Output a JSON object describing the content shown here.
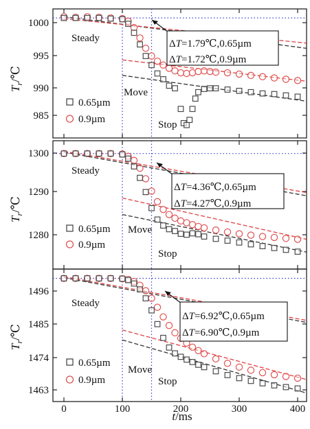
{
  "figure": {
    "x_axis_label_italic": "t",
    "x_axis_label_unit": "/ms",
    "x_ticks": [
      "0",
      "100",
      "200",
      "300",
      "400"
    ],
    "y_axis_label_italic": "T",
    "y_axis_label_sub": "r",
    "y_axis_label_unit": "/℃",
    "legend_labels": [
      "0.65µm",
      "0.9µm"
    ],
    "steady_label": "Steady",
    "move_label": "Move",
    "stop_label": "Stop",
    "delta_prefix": "Δ",
    "delta_var": "T"
  },
  "colors": {
    "series_065": "#4a4a4a",
    "series_09": "#e05050",
    "guide_vertical": "#3a3acc",
    "trend_black": "#333333",
    "trend_red": "#e04040",
    "frame": "#222222"
  },
  "chart_data": [
    {
      "type": "scatter",
      "y_ticks": [
        "1000",
        "995",
        "990",
        "985"
      ],
      "ylim": [
        981.5,
        1001.5
      ],
      "xlim": [
        -15,
        415
      ],
      "annotation_lines": [
        "=1.79℃,0.65µm",
        "=1.72℃,0.9µm"
      ],
      "series": [
        {
          "name": "0.65µm",
          "marker": "square",
          "x": [
            0,
            20,
            40,
            60,
            80,
            100,
            110,
            120,
            130,
            140,
            150,
            160,
            170,
            180,
            190,
            200,
            205,
            210,
            215,
            220,
            225,
            230,
            240,
            250,
            260,
            280,
            300,
            320,
            340,
            360,
            380,
            400
          ],
          "y": [
            1000.1,
            1000.1,
            1000.1,
            1000.1,
            1000.0,
            999.9,
            999.2,
            997.8,
            996.0,
            994.2,
            992.8,
            991.5,
            990.6,
            989.6,
            989.2,
            986.0,
            983.8,
            983.5,
            984.3,
            986.0,
            987.6,
            988.6,
            989.1,
            989.2,
            989.2,
            989.0,
            988.8,
            988.6,
            988.4,
            988.3,
            988.1,
            987.9
          ]
        },
        {
          "name": "0.9µm",
          "marker": "circle",
          "x": [
            0,
            20,
            40,
            60,
            80,
            100,
            110,
            120,
            130,
            140,
            150,
            160,
            170,
            180,
            190,
            200,
            210,
            220,
            230,
            240,
            250,
            260,
            280,
            300,
            320,
            340,
            360,
            380,
            400
          ],
          "y": [
            1000.3,
            1000.2,
            1000.3,
            1000.2,
            1000.1,
            1000.0,
            999.6,
            998.6,
            997.0,
            995.4,
            994.2,
            993.4,
            992.8,
            992.3,
            991.9,
            991.6,
            991.5,
            991.6,
            991.8,
            991.9,
            991.8,
            991.7,
            991.6,
            991.4,
            991.2,
            991.0,
            990.8,
            990.6,
            990.4
          ]
        }
      ],
      "trend_lines": [
        {
          "color": "black",
          "x": [
            0,
            415
          ],
          "y": [
            1000.3,
            995.4
          ]
        },
        {
          "color": "red",
          "x": [
            0,
            415
          ],
          "y": [
            1000.0,
            996.2
          ]
        },
        {
          "color": "black",
          "x": [
            100,
            415
          ],
          "y": [
            991.2,
            987.2
          ]
        },
        {
          "color": "red",
          "x": [
            100,
            415
          ],
          "y": [
            993.6,
            990.3
          ]
        }
      ]
    },
    {
      "type": "scatter",
      "y_ticks": [
        "1300",
        "1290",
        "1280"
      ],
      "ylim": [
        1273.5,
        1301.5
      ],
      "xlim": [
        -15,
        415
      ],
      "annotation_lines": [
        "=4.36℃,0.65µm",
        "=4.27℃,0.9µm"
      ],
      "series": [
        {
          "name": "0.65µm",
          "marker": "square",
          "x": [
            0,
            20,
            40,
            60,
            80,
            100,
            110,
            120,
            130,
            140,
            150,
            160,
            170,
            180,
            190,
            200,
            210,
            220,
            230,
            240,
            260,
            280,
            300,
            320,
            340,
            360,
            380,
            400
          ],
          "y": [
            1298.7,
            1298.7,
            1298.7,
            1298.7,
            1298.7,
            1298.5,
            1297.6,
            1295.9,
            1293.4,
            1290.3,
            1286.8,
            1284.3,
            1283.0,
            1282.2,
            1281.8,
            1281.2,
            1281.0,
            1281.3,
            1281.1,
            1280.6,
            1280.1,
            1279.7,
            1279.3,
            1278.9,
            1278.5,
            1278.1,
            1277.7,
            1277.3
          ]
        },
        {
          "name": "0.9µm",
          "marker": "circle",
          "x": [
            0,
            20,
            40,
            60,
            80,
            100,
            110,
            120,
            130,
            140,
            150,
            160,
            170,
            180,
            190,
            200,
            210,
            220,
            230,
            240,
            260,
            280,
            300,
            320,
            340,
            360,
            380,
            400
          ],
          "y": [
            1298.7,
            1298.7,
            1298.7,
            1298.7,
            1298.7,
            1298.6,
            1298.1,
            1297.2,
            1295.5,
            1293.2,
            1290.5,
            1288.2,
            1286.5,
            1285.4,
            1284.6,
            1284.0,
            1283.6,
            1283.2,
            1282.8,
            1282.5,
            1282.0,
            1281.6,
            1281.2,
            1280.9,
            1280.6,
            1280.4,
            1280.2,
            1280.0
          ]
        }
      ],
      "trend_lines": [
        {
          "color": "black",
          "x": [
            0,
            415
          ],
          "y": [
            1299.0,
            1289.5
          ]
        },
        {
          "color": "red",
          "x": [
            0,
            415
          ],
          "y": [
            1299.2,
            1290.2
          ]
        },
        {
          "color": "black",
          "x": [
            100,
            415
          ],
          "y": [
            1285.4,
            1277.2
          ]
        },
        {
          "color": "red",
          "x": [
            100,
            415
          ],
          "y": [
            1289.0,
            1280.0
          ]
        }
      ]
    },
    {
      "type": "scatter",
      "y_ticks": [
        "1496",
        "1485",
        "1474",
        "1463"
      ],
      "ylim": [
        1461.0,
        1499.5
      ],
      "xlim": [
        -15,
        415
      ],
      "annotation_lines": [
        "=6.92℃,0.65µm",
        "=6.90℃,0.9µm"
      ],
      "series": [
        {
          "name": "0.65µm",
          "marker": "square",
          "x": [
            0,
            20,
            40,
            60,
            80,
            100,
            110,
            120,
            130,
            140,
            150,
            160,
            170,
            180,
            190,
            200,
            210,
            220,
            230,
            240,
            260,
            280,
            300,
            320,
            340,
            360,
            380,
            400
          ],
          "y": [
            1496.8,
            1496.8,
            1496.8,
            1496.8,
            1496.8,
            1496.7,
            1496.3,
            1495.3,
            1493.6,
            1491.0,
            1487.5,
            1483.5,
            1479.5,
            1476.7,
            1475.0,
            1474.0,
            1473.2,
            1472.5,
            1471.7,
            1471.0,
            1469.8,
            1468.7,
            1467.8,
            1467.0,
            1466.3,
            1465.7,
            1465.2,
            1464.8
          ]
        },
        {
          "name": "0.9µm",
          "marker": "circle",
          "x": [
            0,
            20,
            40,
            60,
            80,
            100,
            110,
            120,
            130,
            140,
            150,
            160,
            170,
            180,
            190,
            200,
            210,
            220,
            230,
            240,
            260,
            280,
            300,
            320,
            340,
            360,
            380,
            400
          ],
          "y": [
            1496.8,
            1496.8,
            1496.8,
            1496.8,
            1496.8,
            1496.7,
            1496.5,
            1495.9,
            1494.8,
            1493.2,
            1491.0,
            1488.4,
            1485.6,
            1483.1,
            1481.0,
            1479.4,
            1478.0,
            1476.8,
            1475.8,
            1474.9,
            1473.4,
            1472.1,
            1471.0,
            1470.1,
            1469.4,
            1468.8,
            1468.3,
            1467.8
          ]
        }
      ],
      "trend_lines": [
        {
          "color": "black",
          "x": [
            0,
            415
          ],
          "y": [
            1497.0,
            1484.0
          ]
        },
        {
          "color": "red",
          "x": [
            0,
            415
          ],
          "y": [
            1497.3,
            1484.6
          ]
        },
        {
          "color": "black",
          "x": [
            100,
            415
          ],
          "y": [
            1478.9,
            1463.5
          ]
        },
        {
          "color": "red",
          "x": [
            100,
            415
          ],
          "y": [
            1481.8,
            1467.4
          ]
        }
      ]
    }
  ],
  "guides": {
    "steady_end_x": 100,
    "stop_x": 150
  }
}
